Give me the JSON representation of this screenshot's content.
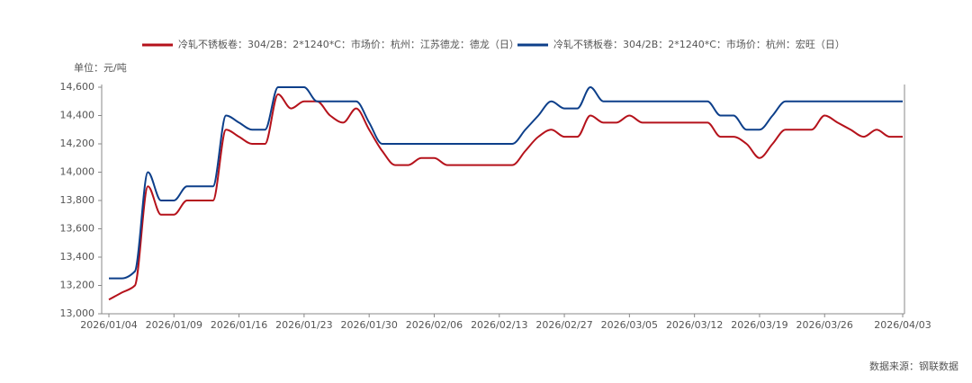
{
  "chart_data": {
    "type": "line",
    "y_unit": "单位：元/吨",
    "source": "数据来源：钢联数据",
    "categories": [
      "2026/01/04",
      null,
      null,
      null,
      null,
      "2026/01/09",
      null,
      null,
      null,
      null,
      "2026/01/16",
      null,
      null,
      null,
      null,
      "2026/01/23",
      null,
      null,
      null,
      null,
      "2026/01/30",
      null,
      null,
      null,
      null,
      "2026/02/06",
      null,
      null,
      null,
      null,
      "2026/02/13",
      null,
      null,
      null,
      null,
      "2026/02/27",
      null,
      null,
      null,
      null,
      "2026/03/05",
      null,
      null,
      null,
      null,
      "2026/03/12",
      null,
      null,
      null,
      null,
      "2026/03/19",
      null,
      null,
      null,
      null,
      "2026/03/26",
      null,
      null,
      null,
      null,
      null,
      "2026/04/03"
    ],
    "series": [
      {
        "name": "冷轧不锈板卷：304/2B：2*1240*C：市场价：杭州：江苏德龙：德龙（日）",
        "color": "#b5121b",
        "values": [
          13100,
          13150,
          13200,
          13900,
          13700,
          13700,
          13800,
          13800,
          13800,
          14300,
          14250,
          14200,
          14200,
          14550,
          14450,
          14500,
          14500,
          14400,
          14350,
          14450,
          14300,
          14150,
          14050,
          14050,
          14100,
          14100,
          14050,
          14050,
          14050,
          14050,
          14050,
          14050,
          14150,
          14250,
          14300,
          14250,
          14250,
          14400,
          14350,
          14350,
          14400,
          14350,
          14350,
          14350,
          14350,
          14350,
          14350,
          14250,
          14250,
          14200,
          14100,
          14200,
          14300,
          14300,
          14300,
          14400,
          14350,
          14300,
          14250,
          14300,
          14250,
          14250
        ]
      },
      {
        "name": "冷轧不锈板卷：304/2B：2*1240*C：市场价：杭州：宏旺（日）",
        "color": "#0d3f8a",
        "values": [
          13250,
          13250,
          13300,
          14000,
          13800,
          13800,
          13900,
          13900,
          13900,
          14400,
          14350,
          14300,
          14300,
          14600,
          14600,
          14600,
          14500,
          14500,
          14500,
          14500,
          14350,
          14200,
          14200,
          14200,
          14200,
          14200,
          14200,
          14200,
          14200,
          14200,
          14200,
          14200,
          14300,
          14400,
          14500,
          14450,
          14450,
          14600,
          14500,
          14500,
          14500,
          14500,
          14500,
          14500,
          14500,
          14500,
          14500,
          14400,
          14400,
          14300,
          14300,
          14400,
          14500,
          14500,
          14500,
          14500,
          14500,
          14500,
          14500,
          14500,
          14500,
          14500
        ]
      }
    ],
    "ylim": [
      13000,
      14600
    ],
    "yticks": [
      {
        "value": 13000,
        "label": "13,000"
      },
      {
        "value": 13200,
        "label": "13,200"
      },
      {
        "value": 13400,
        "label": "13,400"
      },
      {
        "value": 13600,
        "label": "13,600"
      },
      {
        "value": 13800,
        "label": "13,800"
      },
      {
        "value": 14000,
        "label": "14,000"
      },
      {
        "value": 14200,
        "label": "14,200"
      },
      {
        "value": 14400,
        "label": "14,400"
      },
      {
        "value": 14600,
        "label": "14,600"
      }
    ],
    "grid": false
  }
}
